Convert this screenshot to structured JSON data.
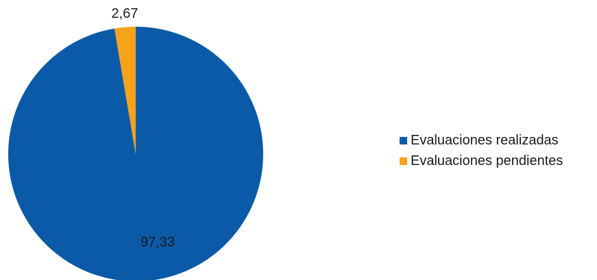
{
  "chart_data": {
    "type": "pie",
    "title": "",
    "categories": [
      "Evaluaciones realizadas",
      "Evaluaciones pendientes"
    ],
    "values": [
      97.33,
      2.67
    ],
    "value_labels": [
      "97,33",
      "2,67"
    ],
    "colors": [
      "#0a5aa8",
      "#f7a21b"
    ],
    "legend_position": "right",
    "start_angle": "12 o'clock, clockwise"
  },
  "legend": {
    "items": [
      {
        "label": "Evaluaciones realizadas",
        "color": "#0a5aa8"
      },
      {
        "label": "Evaluaciones pendientes",
        "color": "#f7a21b"
      }
    ]
  }
}
